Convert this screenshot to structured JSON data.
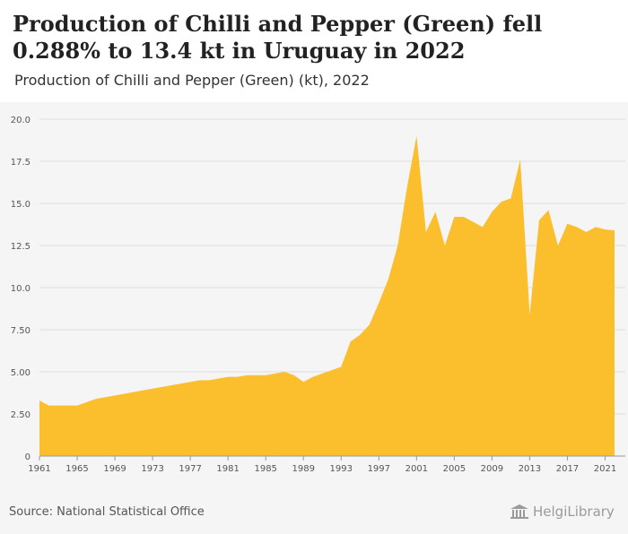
{
  "title": "Production of Chilli and Pepper (Green) fell 0.288% to 13.4 kt in Uruguay in 2022",
  "subtitle": "Production of Chilli and Pepper (Green) (kt), 2022",
  "source": "Source: National Statistical Office",
  "logo_text": "HelgiLibrary",
  "colors": {
    "area": "#fbbf2e",
    "grid": "#dddddd",
    "axis": "#999999",
    "tick_text": "#555555"
  },
  "chart_data": {
    "type": "area",
    "title": "Production of Chilli and Pepper (Green) fell 0.288% to 13.4 kt in Uruguay in 2022",
    "ylabel": "",
    "xlabel": "",
    "ylim": [
      0,
      20
    ],
    "xlim": [
      1961,
      2022
    ],
    "grid": true,
    "yticks": [
      0,
      2.5,
      5,
      7.5,
      10,
      12.5,
      15,
      17.5,
      20
    ],
    "ytick_labels": [
      "0",
      "2.50",
      "5.00",
      "7.50",
      "10.0",
      "12.5",
      "15.0",
      "17.5",
      "20.0"
    ],
    "xticks": [
      1961,
      1965,
      1969,
      1973,
      1977,
      1981,
      1985,
      1989,
      1993,
      1997,
      2001,
      2005,
      2009,
      2013,
      2017,
      2021
    ],
    "xtick_labels": [
      "1961",
      "1965",
      "1969",
      "1973",
      "1977",
      "1981",
      "1985",
      "1989",
      "1993",
      "1997",
      "2001",
      "2005",
      "2009",
      "2013",
      "2017",
      "2021"
    ],
    "x": [
      1961,
      1962,
      1963,
      1964,
      1965,
      1966,
      1967,
      1968,
      1969,
      1970,
      1971,
      1972,
      1973,
      1974,
      1975,
      1976,
      1977,
      1978,
      1979,
      1980,
      1981,
      1982,
      1983,
      1984,
      1985,
      1986,
      1987,
      1988,
      1989,
      1990,
      1991,
      1992,
      1993,
      1994,
      1995,
      1996,
      1997,
      1998,
      1999,
      2000,
      2001,
      2002,
      2003,
      2004,
      2005,
      2006,
      2007,
      2008,
      2009,
      2010,
      2011,
      2012,
      2013,
      2014,
      2015,
      2016,
      2017,
      2018,
      2019,
      2020,
      2021,
      2022
    ],
    "values": [
      3.3,
      3.0,
      3.0,
      3.0,
      3.0,
      3.2,
      3.4,
      3.5,
      3.6,
      3.7,
      3.8,
      3.9,
      4.0,
      4.1,
      4.2,
      4.3,
      4.4,
      4.5,
      4.5,
      4.6,
      4.7,
      4.7,
      4.8,
      4.8,
      4.8,
      4.9,
      5.0,
      4.8,
      4.4,
      4.7,
      4.9,
      5.1,
      5.3,
      6.8,
      7.2,
      7.8,
      9.1,
      10.5,
      12.5,
      16.0,
      19.0,
      13.3,
      14.5,
      12.5,
      14.2,
      14.2,
      13.9,
      13.6,
      14.5,
      15.1,
      15.3,
      17.6,
      8.4,
      14.0,
      14.6,
      12.5,
      13.8,
      13.6,
      13.3,
      13.6,
      13.45,
      13.4
    ]
  }
}
